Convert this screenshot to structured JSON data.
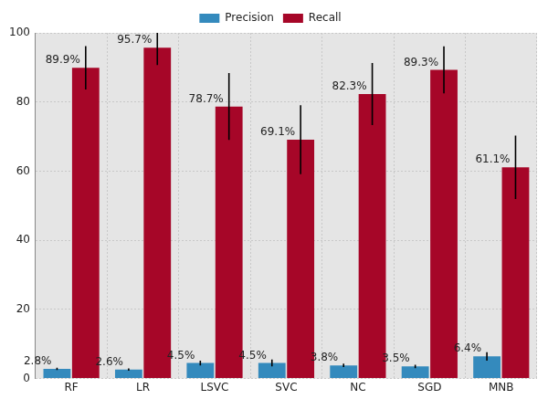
{
  "chart_data": {
    "type": "bar",
    "categories": [
      "RF",
      "LR",
      "LSVC",
      "SVC",
      "NC",
      "SGD",
      "MNB"
    ],
    "series": [
      {
        "name": "Precision",
        "color": "#348ABD",
        "values": [
          2.8,
          2.6,
          4.5,
          4.5,
          3.8,
          3.5,
          6.4
        ],
        "value_labels": [
          "2.8%",
          "2.6%",
          "4.5%",
          "4.5%",
          "3.8%",
          "3.5%",
          "6.4%"
        ],
        "errors": [
          0.3,
          0.3,
          0.7,
          1.0,
          0.5,
          0.5,
          1.2
        ]
      },
      {
        "name": "Recall",
        "color": "#A60628",
        "values": [
          89.9,
          95.7,
          78.7,
          69.1,
          82.3,
          89.3,
          61.1
        ],
        "value_labels": [
          "89.9%",
          "95.7%",
          "78.7%",
          "69.1%",
          "82.3%",
          "89.3%",
          "61.1%"
        ],
        "errors": [
          6.3,
          5.0,
          9.7,
          10.0,
          9.0,
          6.8,
          9.2
        ]
      }
    ],
    "ylim": [
      0,
      100
    ],
    "yticks": [
      0,
      20,
      40,
      60,
      80,
      100
    ],
    "grid": true,
    "legend": "upper center",
    "data_labels": true
  }
}
